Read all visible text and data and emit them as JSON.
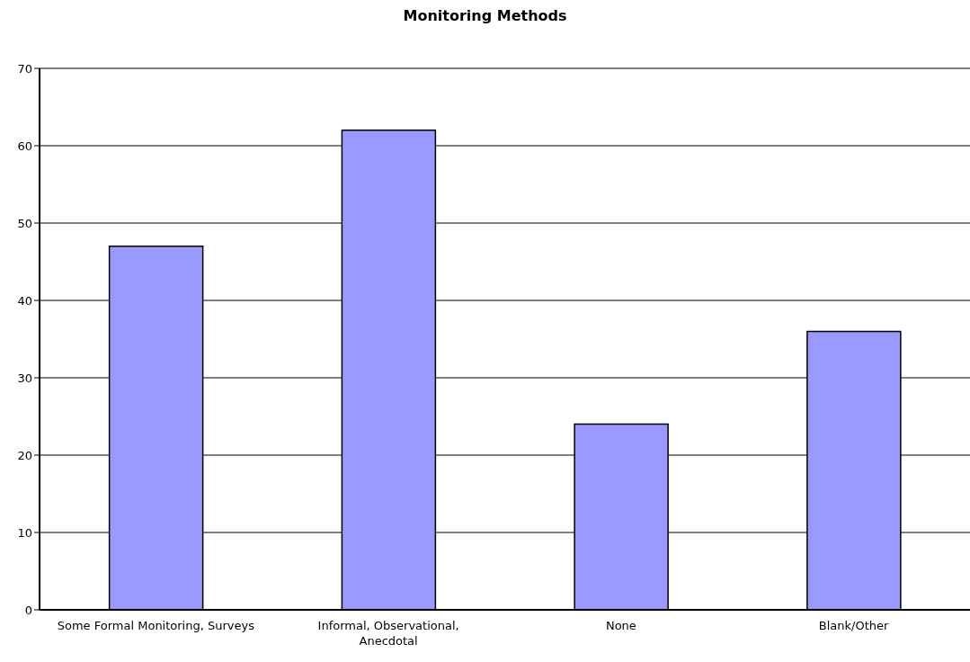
{
  "chart_data": {
    "type": "bar",
    "title": "Monitoring Methods",
    "categories": [
      "Some Formal Monitoring, Surveys",
      "Informal, Observational, Anecdotal",
      "None",
      "Blank/Other"
    ],
    "values": [
      47,
      62,
      24,
      36
    ],
    "color": "#9999ff",
    "ylim": [
      0,
      70
    ],
    "yticks": [
      0,
      10,
      20,
      30,
      40,
      50,
      60,
      70
    ],
    "grid": "y"
  }
}
